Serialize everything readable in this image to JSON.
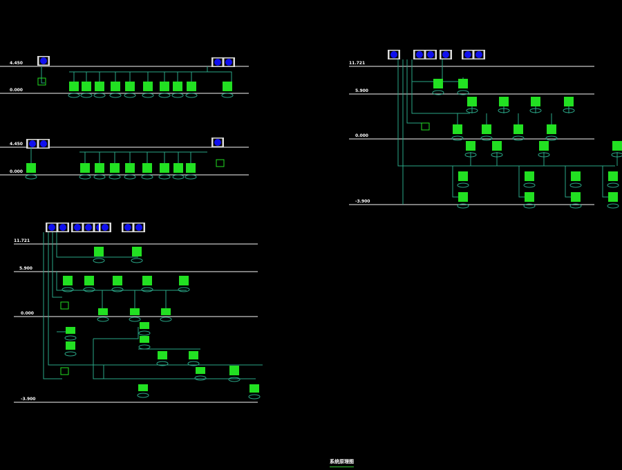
{
  "drawing": {
    "title": "系统原理图",
    "colors": {
      "background": "#000000",
      "level_line": "#c8c8c8",
      "pipe": "#2aa888",
      "unit": "#22e022",
      "indoor_unit_icon": "#1010ee",
      "label": "#3cff3c"
    },
    "panels": [
      {
        "levels": [
          "4.450",
          "0.000"
        ]
      },
      {
        "levels": [
          "4.450",
          "0.000"
        ]
      },
      {
        "levels": [
          "11.721",
          "5.900",
          "0.000",
          "-3.900"
        ]
      },
      {
        "levels": [
          "11.721",
          "5.900",
          "0.000",
          "-3.900"
        ]
      }
    ]
  }
}
